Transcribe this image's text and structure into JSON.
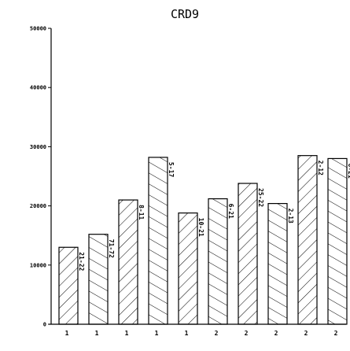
{
  "chart_data": {
    "type": "bar",
    "title": "CRD9",
    "xlabel": "",
    "ylabel": "",
    "ylim": [
      0,
      50000
    ],
    "yticks": [
      0,
      10000,
      20000,
      30000,
      40000,
      50000
    ],
    "ytick_labels": [
      "0",
      "10000",
      "20000",
      "30000",
      "40000",
      "50000"
    ],
    "categories": [
      "21-22",
      "71-72",
      "8-11",
      "5-17",
      "10-21",
      "6-21",
      "25-22",
      "2-13",
      "2-12",
      "6-21"
    ],
    "values": [
      13000,
      15200,
      21000,
      28200,
      18800,
      21200,
      23800,
      20400,
      28500,
      28000
    ],
    "group_labels": [
      "1",
      "1",
      "1",
      "1",
      "1",
      "2",
      "2",
      "2",
      "2",
      "2"
    ],
    "bar_fill": "hatched",
    "bar_color": "#000000",
    "grid": false,
    "legend": "none"
  }
}
